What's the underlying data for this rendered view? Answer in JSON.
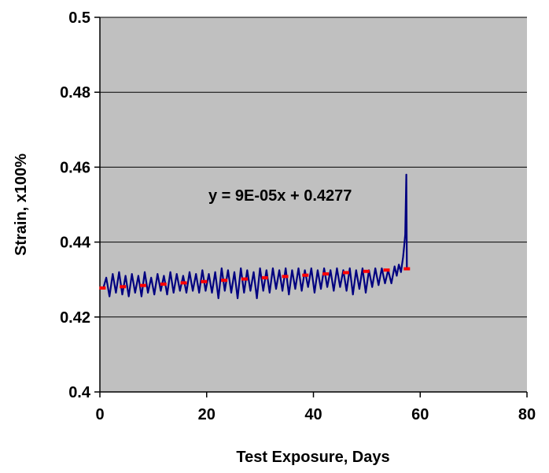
{
  "chart_data": {
    "type": "line",
    "title": "",
    "xlabel": "Test Exposure, Days",
    "ylabel": "Strain, x100%",
    "xlim": [
      0,
      80
    ],
    "ylim": [
      0.4,
      0.5
    ],
    "x_ticks": [
      "0",
      "20",
      "40",
      "60",
      "80"
    ],
    "y_ticks": [
      "0.4",
      "0.42",
      "0.44",
      "0.46",
      "0.48",
      "0.5"
    ],
    "grid": "horizontal",
    "background_color": "#c0c0c0",
    "series": [
      {
        "type": "line",
        "color": "#000080",
        "points": [
          [
            0.6,
            0.4275
          ],
          [
            1.2,
            0.4305
          ],
          [
            1.8,
            0.4255
          ],
          [
            2.4,
            0.4315
          ],
          [
            3.0,
            0.4265
          ],
          [
            3.6,
            0.432
          ],
          [
            4.2,
            0.426
          ],
          [
            4.8,
            0.431
          ],
          [
            5.4,
            0.4255
          ],
          [
            6.0,
            0.4315
          ],
          [
            6.6,
            0.4265
          ],
          [
            7.2,
            0.431
          ],
          [
            7.8,
            0.4255
          ],
          [
            8.4,
            0.432
          ],
          [
            9.0,
            0.4265
          ],
          [
            9.6,
            0.4305
          ],
          [
            10.2,
            0.426
          ],
          [
            10.8,
            0.4315
          ],
          [
            11.4,
            0.427
          ],
          [
            12.0,
            0.431
          ],
          [
            12.6,
            0.426
          ],
          [
            13.2,
            0.432
          ],
          [
            13.8,
            0.4265
          ],
          [
            14.4,
            0.4315
          ],
          [
            15.0,
            0.427
          ],
          [
            15.6,
            0.431
          ],
          [
            16.2,
            0.4265
          ],
          [
            16.8,
            0.432
          ],
          [
            17.4,
            0.427
          ],
          [
            18.0,
            0.4315
          ],
          [
            18.6,
            0.4265
          ],
          [
            19.2,
            0.4325
          ],
          [
            19.8,
            0.427
          ],
          [
            20.4,
            0.4315
          ],
          [
            21.0,
            0.4265
          ],
          [
            21.6,
            0.432
          ],
          [
            22.2,
            0.425
          ],
          [
            22.8,
            0.433
          ],
          [
            23.4,
            0.427
          ],
          [
            24.0,
            0.4325
          ],
          [
            24.6,
            0.4265
          ],
          [
            25.2,
            0.432
          ],
          [
            25.8,
            0.425
          ],
          [
            26.4,
            0.433
          ],
          [
            27.0,
            0.4265
          ],
          [
            27.6,
            0.4325
          ],
          [
            28.2,
            0.427
          ],
          [
            28.8,
            0.432
          ],
          [
            29.4,
            0.425
          ],
          [
            30.0,
            0.433
          ],
          [
            30.6,
            0.427
          ],
          [
            31.2,
            0.4325
          ],
          [
            31.8,
            0.4265
          ],
          [
            32.4,
            0.433
          ],
          [
            33.0,
            0.4275
          ],
          [
            33.6,
            0.4325
          ],
          [
            34.2,
            0.427
          ],
          [
            34.8,
            0.433
          ],
          [
            35.4,
            0.426
          ],
          [
            36.0,
            0.4325
          ],
          [
            36.6,
            0.4275
          ],
          [
            37.2,
            0.433
          ],
          [
            37.8,
            0.427
          ],
          [
            38.4,
            0.4325
          ],
          [
            39.0,
            0.428
          ],
          [
            39.6,
            0.433
          ],
          [
            40.2,
            0.4265
          ],
          [
            40.8,
            0.4325
          ],
          [
            41.4,
            0.4275
          ],
          [
            42.0,
            0.433
          ],
          [
            42.6,
            0.428
          ],
          [
            43.2,
            0.4325
          ],
          [
            43.8,
            0.427
          ],
          [
            44.4,
            0.433
          ],
          [
            45.0,
            0.428
          ],
          [
            45.6,
            0.4325
          ],
          [
            46.2,
            0.427
          ],
          [
            46.8,
            0.433
          ],
          [
            47.4,
            0.426
          ],
          [
            48.0,
            0.4325
          ],
          [
            48.6,
            0.4275
          ],
          [
            49.2,
            0.433
          ],
          [
            49.8,
            0.4265
          ],
          [
            50.4,
            0.4325
          ],
          [
            51.0,
            0.428
          ],
          [
            51.6,
            0.433
          ],
          [
            52.2,
            0.4285
          ],
          [
            52.8,
            0.433
          ],
          [
            53.4,
            0.429
          ],
          [
            54.0,
            0.4325
          ],
          [
            54.6,
            0.429
          ],
          [
            55.2,
            0.4335
          ],
          [
            55.6,
            0.431
          ],
          [
            56.0,
            0.434
          ],
          [
            56.4,
            0.432
          ],
          [
            56.8,
            0.436
          ],
          [
            57.0,
            0.439
          ],
          [
            57.2,
            0.442
          ],
          [
            57.4,
            0.458
          ],
          [
            57.5,
            0.433
          ]
        ]
      },
      {
        "type": "trendline",
        "color": "#ff0000",
        "slope": 9e-05,
        "intercept": 0.4277,
        "x_range": [
          0,
          58
        ],
        "equation_label": "y = 9E-05x + 0.4277"
      }
    ]
  }
}
